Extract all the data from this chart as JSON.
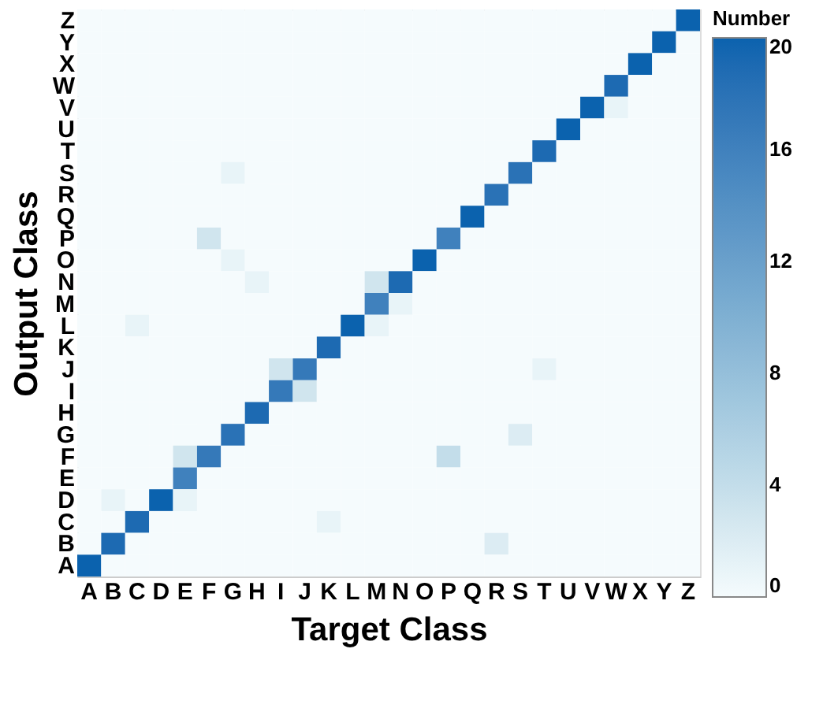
{
  "chart_data": {
    "type": "heatmap",
    "xlabel": "Target Class",
    "ylabel": "Output Class",
    "legend_title": "Number",
    "categories": [
      "A",
      "B",
      "C",
      "D",
      "E",
      "F",
      "G",
      "H",
      "I",
      "J",
      "K",
      "L",
      "M",
      "N",
      "O",
      "P",
      "Q",
      "R",
      "S",
      "T",
      "U",
      "V",
      "W",
      "X",
      "Y",
      "Z"
    ],
    "y_categories": [
      "Z",
      "Y",
      "X",
      "W",
      "V",
      "U",
      "T",
      "S",
      "R",
      "Q",
      "P",
      "O",
      "N",
      "M",
      "L",
      "K",
      "J",
      "I",
      "H",
      "G",
      "F",
      "E",
      "D",
      "C",
      "B",
      "A"
    ],
    "cells": [
      [
        0,
        0,
        0,
        0,
        0,
        0,
        0,
        0,
        0,
        0,
        0,
        0,
        0,
        0,
        0,
        0,
        0,
        0,
        0,
        0,
        0,
        0,
        0,
        0,
        0,
        20
      ],
      [
        0,
        0,
        0,
        0,
        0,
        0,
        0,
        0,
        0,
        0,
        0,
        0,
        0,
        0,
        0,
        0,
        0,
        0,
        0,
        0,
        0,
        0,
        0,
        0,
        20,
        0
      ],
      [
        0,
        0,
        0,
        0,
        0,
        0,
        0,
        0,
        0,
        0,
        0,
        0,
        0,
        0,
        0,
        0,
        0,
        0,
        0,
        0,
        0,
        0,
        0,
        20,
        0,
        0
      ],
      [
        0,
        0,
        0,
        0,
        0,
        0,
        0,
        0,
        0,
        0,
        0,
        0,
        0,
        0,
        0,
        0,
        0,
        0,
        0,
        0,
        0,
        0,
        19,
        0,
        0,
        0
      ],
      [
        0,
        0,
        0,
        0,
        0,
        0,
        0,
        0,
        0,
        0,
        0,
        0,
        0,
        0,
        0,
        0,
        0,
        0,
        0,
        0,
        0,
        20,
        1,
        0,
        0,
        0
      ],
      [
        0,
        0,
        0,
        0,
        0,
        0,
        0,
        0,
        0,
        0,
        0,
        0,
        0,
        0,
        0,
        0,
        0,
        0,
        0,
        0,
        20,
        0,
        0,
        0,
        0,
        0
      ],
      [
        0,
        0,
        0,
        0,
        0,
        0,
        0,
        0,
        0,
        0,
        0,
        0,
        0,
        0,
        0,
        0,
        0,
        0,
        0,
        19,
        0,
        0,
        0,
        0,
        0,
        0
      ],
      [
        0,
        0,
        0,
        0,
        0,
        0,
        1,
        0,
        0,
        0,
        0,
        0,
        0,
        0,
        0,
        0,
        0,
        0,
        18,
        0,
        0,
        0,
        0,
        0,
        0,
        0
      ],
      [
        0,
        0,
        0,
        0,
        0,
        0,
        0,
        0,
        0,
        0,
        0,
        0,
        0,
        0,
        0,
        0,
        0,
        18,
        0,
        0,
        0,
        0,
        0,
        0,
        0,
        0
      ],
      [
        0,
        0,
        0,
        0,
        0,
        0,
        0,
        0,
        0,
        0,
        0,
        0,
        0,
        0,
        0,
        0,
        20,
        0,
        0,
        0,
        0,
        0,
        0,
        0,
        0,
        0
      ],
      [
        0,
        0,
        0,
        0,
        0,
        3,
        0,
        0,
        0,
        0,
        0,
        0,
        0,
        0,
        0,
        16,
        0,
        0,
        0,
        0,
        0,
        0,
        0,
        0,
        0,
        0
      ],
      [
        0,
        0,
        0,
        0,
        0,
        0,
        1,
        0,
        0,
        0,
        0,
        0,
        0,
        0,
        20,
        0,
        0,
        0,
        0,
        0,
        0,
        0,
        0,
        0,
        0,
        0
      ],
      [
        0,
        0,
        0,
        0,
        0,
        0,
        0,
        1,
        0,
        0,
        0,
        0,
        3,
        19,
        0,
        0,
        0,
        0,
        0,
        0,
        0,
        0,
        0,
        0,
        0,
        0
      ],
      [
        0,
        0,
        0,
        0,
        0,
        0,
        0,
        0,
        0,
        0,
        0,
        0,
        16,
        1,
        0,
        0,
        0,
        0,
        0,
        0,
        0,
        0,
        0,
        0,
        0,
        0
      ],
      [
        0,
        0,
        1,
        0,
        0,
        0,
        0,
        0,
        0,
        0,
        0,
        20,
        1,
        0,
        0,
        0,
        0,
        0,
        0,
        0,
        0,
        0,
        0,
        0,
        0,
        0
      ],
      [
        0,
        0,
        0,
        0,
        0,
        0,
        0,
        0,
        0,
        0,
        19,
        0,
        0,
        0,
        0,
        0,
        0,
        0,
        0,
        0,
        0,
        0,
        0,
        0,
        0,
        0
      ],
      [
        0,
        0,
        0,
        0,
        0,
        0,
        0,
        0,
        3,
        17,
        0,
        0,
        0,
        0,
        0,
        0,
        0,
        0,
        0,
        1,
        0,
        0,
        0,
        0,
        0,
        0
      ],
      [
        0,
        0,
        0,
        0,
        0,
        0,
        0,
        0,
        17,
        3,
        0,
        0,
        0,
        0,
        0,
        0,
        0,
        0,
        0,
        0,
        0,
        0,
        0,
        0,
        0,
        0
      ],
      [
        0,
        0,
        0,
        0,
        0,
        0,
        0,
        19,
        0,
        0,
        0,
        0,
        0,
        0,
        0,
        0,
        0,
        0,
        0,
        0,
        0,
        0,
        0,
        0,
        0,
        0
      ],
      [
        0,
        0,
        0,
        0,
        0,
        0,
        18,
        0,
        0,
        0,
        0,
        0,
        0,
        0,
        0,
        0,
        0,
        0,
        2,
        0,
        0,
        0,
        0,
        0,
        0,
        0
      ],
      [
        0,
        0,
        0,
        0,
        3,
        17,
        0,
        0,
        0,
        0,
        0,
        0,
        0,
        0,
        0,
        4,
        0,
        0,
        0,
        0,
        0,
        0,
        0,
        0,
        0,
        0
      ],
      [
        0,
        0,
        0,
        0,
        16,
        0,
        0,
        0,
        0,
        0,
        0,
        0,
        0,
        0,
        0,
        0,
        0,
        0,
        0,
        0,
        0,
        0,
        0,
        0,
        0,
        0
      ],
      [
        0,
        1,
        0,
        20,
        1,
        0,
        0,
        0,
        0,
        0,
        0,
        0,
        0,
        0,
        0,
        0,
        0,
        0,
        0,
        0,
        0,
        0,
        0,
        0,
        0,
        0
      ],
      [
        0,
        0,
        19,
        0,
        0,
        0,
        0,
        0,
        0,
        0,
        1,
        0,
        0,
        0,
        0,
        0,
        0,
        0,
        0,
        0,
        0,
        0,
        0,
        0,
        0,
        0
      ],
      [
        0,
        19,
        0,
        0,
        0,
        0,
        0,
        0,
        0,
        0,
        0,
        0,
        0,
        0,
        0,
        0,
        0,
        2,
        0,
        0,
        0,
        0,
        0,
        0,
        0,
        0
      ],
      [
        20,
        0,
        0,
        0,
        0,
        0,
        0,
        0,
        0,
        0,
        0,
        0,
        0,
        0,
        0,
        0,
        0,
        0,
        0,
        0,
        0,
        0,
        0,
        0,
        0,
        0
      ]
    ],
    "clim": [
      0,
      20
    ],
    "cticks": [
      0,
      4,
      8,
      12,
      16,
      20
    ],
    "colors": [
      "#f5fbfd",
      "#0b62ae"
    ]
  }
}
